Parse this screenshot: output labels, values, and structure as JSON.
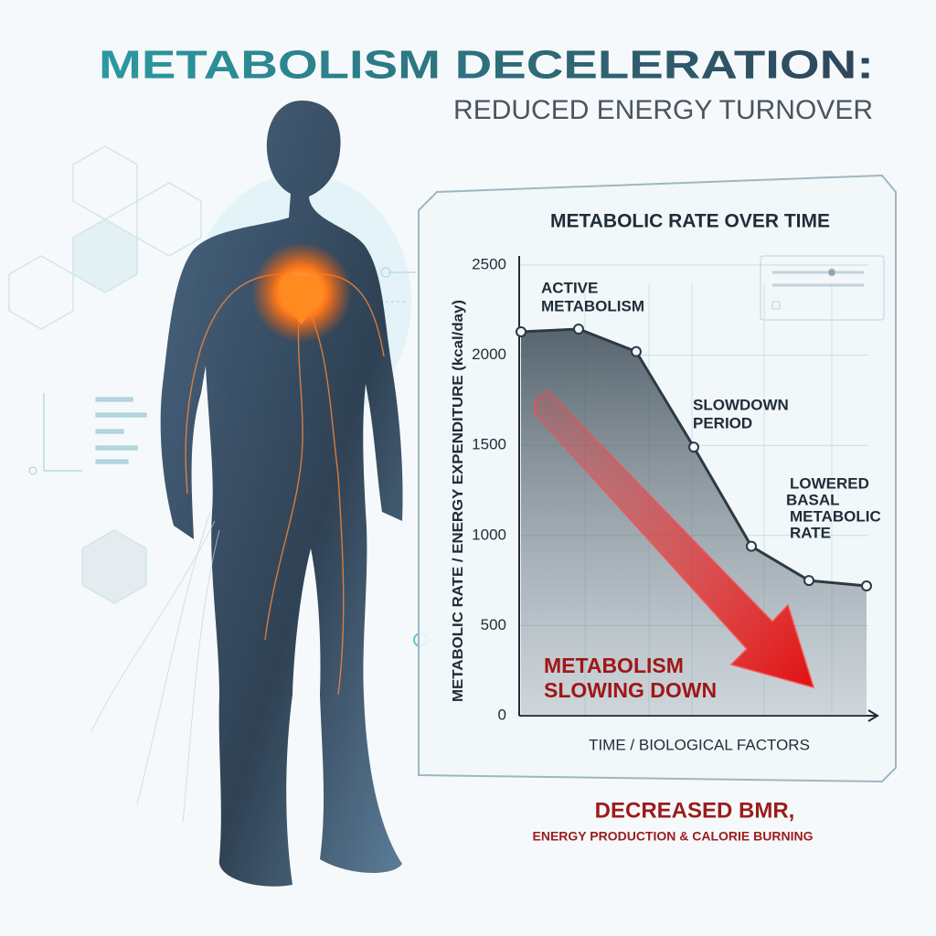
{
  "header": {
    "title": "METABOLISM DECELERATION:",
    "subtitle": "REDUCED ENERGY TURNOVER"
  },
  "chart_data": {
    "type": "area",
    "title": "METABOLIC RATE OVER TIME",
    "y_label": "METABOLIC RATE / ENERGY EXPENDITURE (kcal/day)",
    "x_label": "TIME / BIOLOGICAL FACTORS",
    "categories": [
      null,
      null,
      null,
      null,
      null,
      null,
      null
    ],
    "values": [
      2130,
      2145,
      2020,
      1490,
      940,
      750,
      720
    ],
    "color": "#2c3a46",
    "ylim": [
      0,
      2500
    ],
    "yticks": [
      0,
      500,
      1000,
      1500,
      2000,
      2500
    ],
    "grid": true,
    "annotations": [
      [
        "ACTIVE",
        "METABOLISM"
      ],
      [
        "SLOWDOWN",
        "PERIOD"
      ],
      [
        "LOWERED",
        "BASAL",
        "METABOLIC",
        "RATE"
      ],
      [
        "METABOLISM",
        "SLOWING DOWN"
      ]
    ]
  },
  "footer": {
    "headline": "DECREASED BMR,",
    "subline": "ENERGY PRODUCTION & CALORIE BURNING"
  }
}
